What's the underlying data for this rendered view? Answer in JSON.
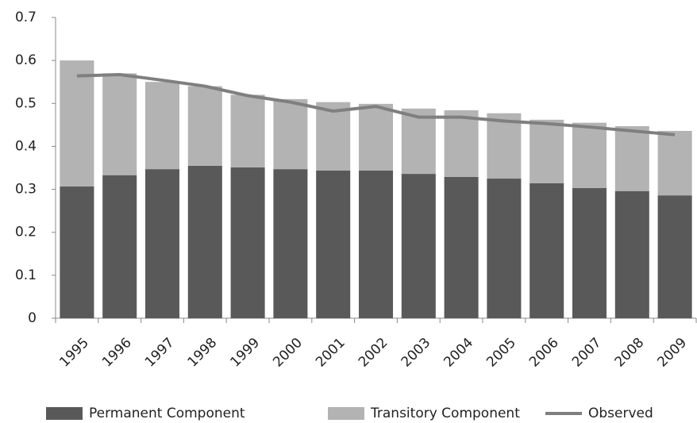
{
  "chart_data": {
    "type": "bar",
    "stacked": true,
    "categories": [
      "1995",
      "1996",
      "1997",
      "1998",
      "1999",
      "2000",
      "2001",
      "2002",
      "2003",
      "2004",
      "2005",
      "2006",
      "2007",
      "2008",
      "2009"
    ],
    "series": [
      {
        "name": "Permanent Component",
        "type": "bar",
        "color": "#595959",
        "values": [
          0.307,
          0.333,
          0.347,
          0.355,
          0.351,
          0.347,
          0.344,
          0.344,
          0.336,
          0.329,
          0.325,
          0.314,
          0.303,
          0.296,
          0.286
        ]
      },
      {
        "name": "Transitory Component",
        "type": "bar",
        "color": "#b3b3b3",
        "values": [
          0.293,
          0.237,
          0.203,
          0.185,
          0.169,
          0.163,
          0.159,
          0.155,
          0.152,
          0.155,
          0.152,
          0.148,
          0.152,
          0.151,
          0.15
        ]
      },
      {
        "name": "Observed",
        "type": "line",
        "color": "#7f7f7f",
        "values": [
          0.564,
          0.567,
          0.554,
          0.54,
          0.518,
          0.503,
          0.482,
          0.493,
          0.468,
          0.468,
          0.459,
          0.453,
          0.445,
          0.436,
          0.427
        ]
      }
    ],
    "ylim": [
      0,
      0.7
    ],
    "yticks": [
      0,
      0.1,
      0.2,
      0.3,
      0.4,
      0.5,
      0.6,
      0.7
    ],
    "grid": false,
    "legend": "bottom"
  }
}
